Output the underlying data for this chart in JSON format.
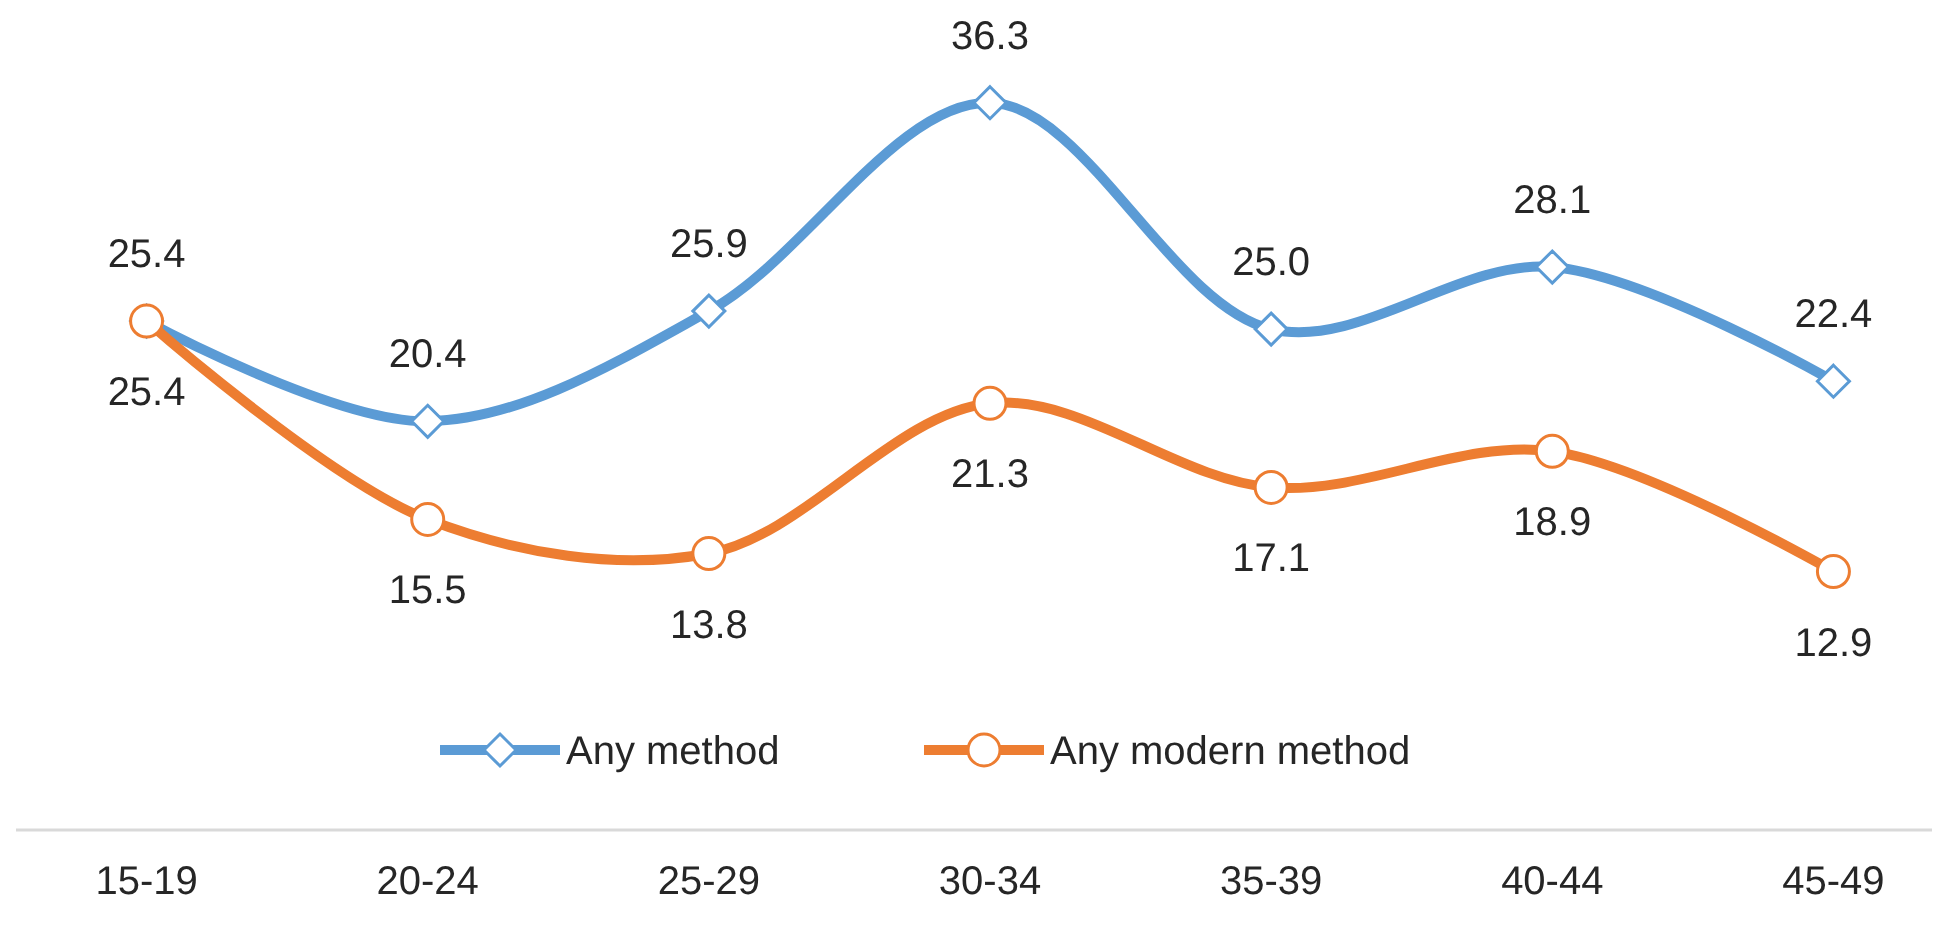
{
  "chart_data": {
    "type": "line",
    "categories": [
      "15-19",
      "20-24",
      "25-29",
      "30-34",
      "35-39",
      "40-44",
      "45-49"
    ],
    "series": [
      {
        "name": "Any method",
        "color": "#5b9bd5",
        "marker": "diamond",
        "values": [
          25.4,
          20.4,
          25.9,
          36.3,
          25.0,
          28.1,
          22.4
        ],
        "value_labels": [
          "25.4",
          "20.4",
          "25.9",
          "36.3",
          "25.0",
          "28.1",
          "22.4"
        ]
      },
      {
        "name": "Any modern method",
        "color": "#ed7d31",
        "marker": "circle",
        "values": [
          25.4,
          15.5,
          13.8,
          21.3,
          17.1,
          18.9,
          12.9
        ]
      }
    ],
    "data_labels": true,
    "legend": "bottom",
    "grid": false
  }
}
